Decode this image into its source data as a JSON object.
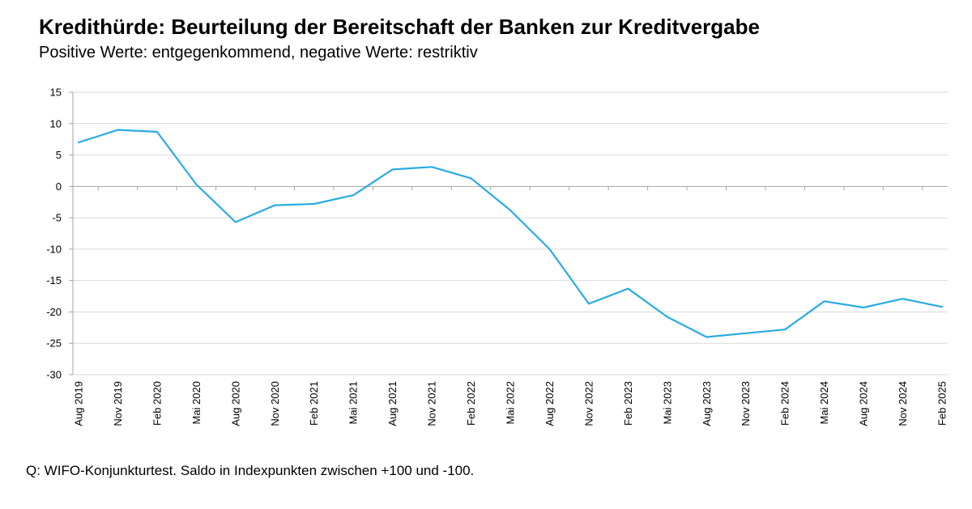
{
  "title": "Kredithürde: Beurteilung der Bereitschaft der Banken zur Kreditvergabe",
  "subtitle": "Positive Werte: entgegenkommend, negative Werte: restriktiv",
  "source": "Q: WIFO-Konjunkturtest. Saldo in Indexpunkten zwischen +100 und -100.",
  "chart_data": {
    "type": "line",
    "categories": [
      "Aug 2019",
      "Nov 2019",
      "Feb 2020",
      "Mai 2020",
      "Aug 2020",
      "Nov 2020",
      "Feb 2021",
      "Mai 2021",
      "Aug 2021",
      "Nov 2021",
      "Feb 2022",
      "Mai 2022",
      "Aug 2022",
      "Nov 2022",
      "Feb 2023",
      "Mai 2023",
      "Aug 2023",
      "Nov 2023",
      "Feb 2024",
      "Mai 2024",
      "Aug 2024",
      "Nov 2024",
      "Feb 2025"
    ],
    "series": [
      {
        "values": [
          7.0,
          9.0,
          8.7,
          0.3,
          -5.7,
          -3.0,
          -2.8,
          -1.4,
          2.7,
          3.1,
          1.3,
          -3.8,
          -10.0,
          -18.7,
          -16.3,
          -20.8,
          -24.0,
          -23.4,
          -22.8,
          -18.3,
          -19.3,
          -17.9,
          -19.2
        ],
        "color": "#29ABE2"
      }
    ],
    "xlabel": "",
    "ylabel": "",
    "ylim": [
      -30,
      15
    ],
    "yticks": [
      15,
      10,
      5,
      0,
      -5,
      -10,
      -15,
      -20,
      -25,
      -30
    ],
    "grid": true,
    "legend": "none",
    "colors": {
      "line": "#29ABE2",
      "grid": "#D9D9D9",
      "axis": "#A6A6A6"
    }
  }
}
